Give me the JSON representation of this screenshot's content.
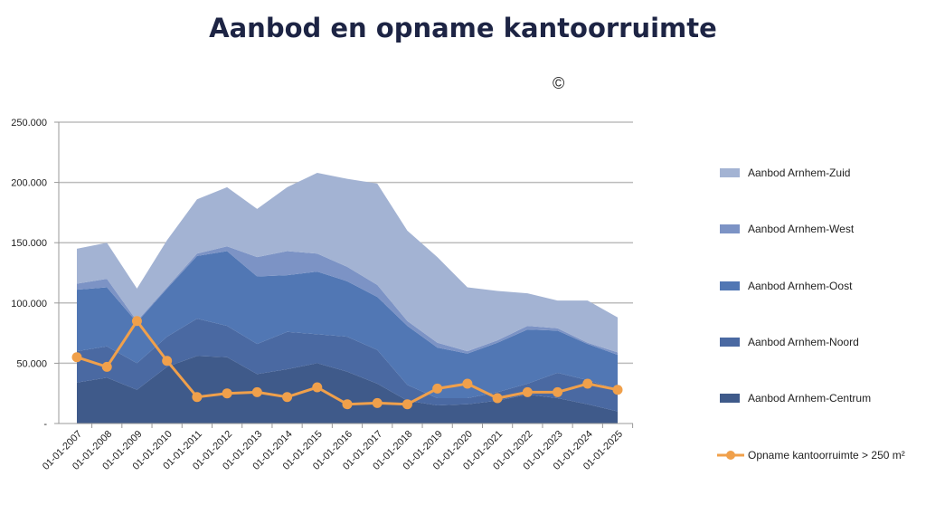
{
  "title": "Aanbod en opname kantoorruimte",
  "copyright_symbol": "©",
  "chart_data": {
    "type": "area",
    "stacked": true,
    "title": "Aanbod en opname kantoorruimte",
    "xlabel": "",
    "ylabel": "",
    "ylim": [
      0,
      250000
    ],
    "y_ticks": [
      "-",
      "50.000",
      "100.000",
      "150.000",
      "200.000",
      "250.000"
    ],
    "y_tick_values": [
      0,
      50000,
      100000,
      150000,
      200000,
      250000
    ],
    "grid": true,
    "legend_position": "right",
    "categories": [
      "01-01-2007",
      "01-01-2008",
      "01-01-2009",
      "01-01-2010",
      "01-01-2011",
      "01-01-2012",
      "01-01-2013",
      "01-01-2014",
      "01-01-2015",
      "01-01-2016",
      "01-01-2017",
      "01-01-2018",
      "01-01-2019",
      "01-01-2020",
      "01-01-2021",
      "01-01-2022",
      "01-01-2023",
      "01-01-2024",
      "01-01-2025"
    ],
    "series": [
      {
        "name": "Aanbod Arnhem-Centrum",
        "type": "area",
        "color": "#3f5a8a",
        "values": [
          34000,
          38000,
          28000,
          47000,
          56000,
          55000,
          41000,
          45000,
          50000,
          43000,
          33000,
          19000,
          15000,
          16000,
          19000,
          24000,
          21000,
          16000,
          10000
        ]
      },
      {
        "name": "Aanbod Arnhem-Noord",
        "type": "area",
        "color": "#4a69a2",
        "values": [
          26000,
          26000,
          22000,
          25000,
          31000,
          26000,
          25000,
          31000,
          24000,
          29000,
          28000,
          13000,
          6000,
          5000,
          7000,
          9000,
          21000,
          20000,
          18000
        ]
      },
      {
        "name": "Aanbod Arnhem-Oost",
        "type": "area",
        "color": "#5177b4",
        "values": [
          51000,
          49000,
          34000,
          40000,
          52000,
          62000,
          56000,
          47000,
          52000,
          46000,
          44000,
          49000,
          42000,
          37000,
          41000,
          45000,
          35000,
          30000,
          29000
        ]
      },
      {
        "name": "Aanbod Arnhem-West",
        "type": "area",
        "color": "#7c93c5",
        "values": [
          5000,
          7000,
          1000,
          1000,
          2000,
          4000,
          16000,
          20000,
          15000,
          12000,
          10000,
          4000,
          4000,
          2000,
          2000,
          3000,
          2000,
          1000,
          2000
        ]
      },
      {
        "name": "Aanbod Arnhem-Zuid",
        "type": "area",
        "color": "#a3b3d3",
        "values": [
          29000,
          30000,
          27000,
          39000,
          45000,
          49000,
          40000,
          53000,
          67000,
          73000,
          84000,
          75000,
          71000,
          53000,
          41000,
          27000,
          23000,
          35000,
          29000
        ]
      },
      {
        "name": "Opname kantoorruimte > 250 m²",
        "type": "line",
        "color": "#f0a04b",
        "values": [
          55000,
          47000,
          85000,
          52000,
          22000,
          25000,
          26000,
          22000,
          30000,
          16000,
          17000,
          16000,
          29000,
          33000,
          21000,
          26000,
          26000,
          33000,
          28000
        ]
      }
    ],
    "legend_order": [
      "Aanbod Arnhem-Zuid",
      "Aanbod Arnhem-West",
      "Aanbod Arnhem-Oost",
      "Aanbod Arnhem-Noord",
      "Aanbod Arnhem-Centrum",
      "Opname kantoorruimte > 250 m²"
    ]
  }
}
